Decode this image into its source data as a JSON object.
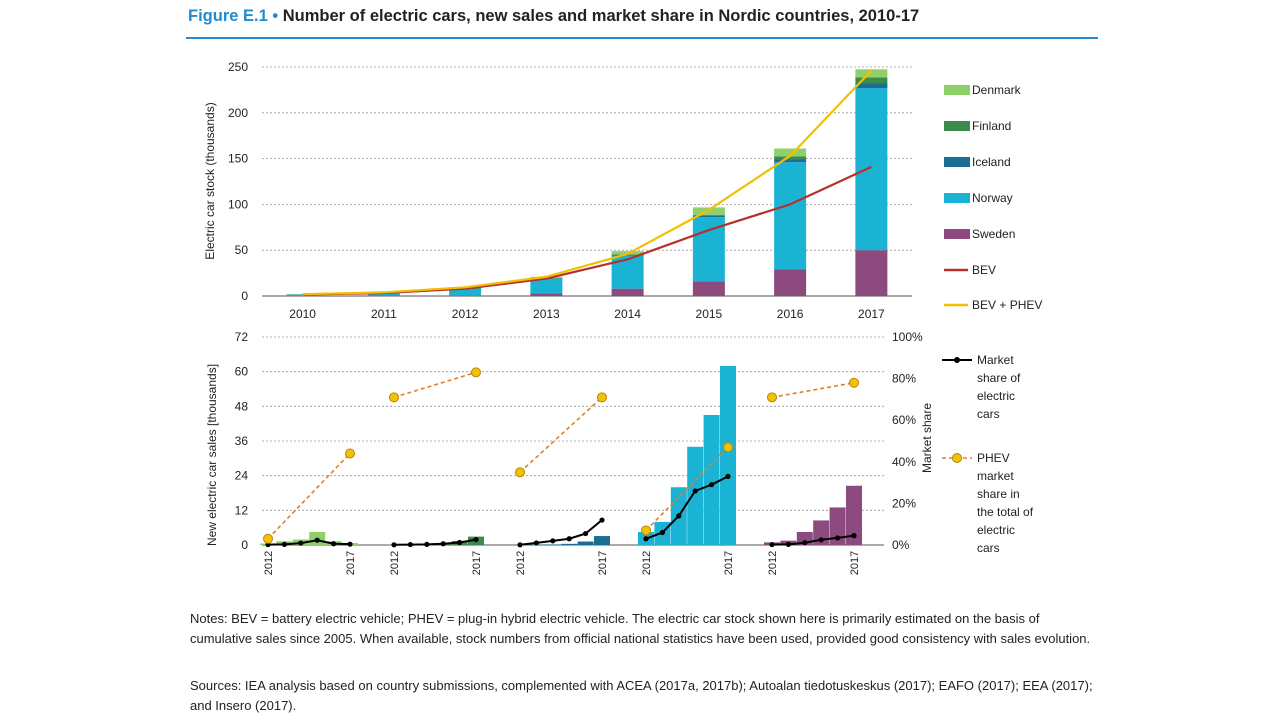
{
  "title": {
    "label": "Figure E.1",
    "bullet": "•",
    "text": "Number of electric cars, new sales and market share in Nordic countries, 2010-17"
  },
  "colors": {
    "title_accent": "#1f8bd0",
    "Denmark": "#8fd06b",
    "Finland": "#3c8a4c",
    "Iceland": "#1a6e94",
    "Norway": "#1bb3d4",
    "Sweden": "#8c4a7e",
    "BEV": "#b5302c",
    "BEV + PHEV": "#f2c000",
    "market_share": "#000000",
    "phev_share": "#d9822b",
    "phev_marker": "#f2c200"
  },
  "chart_data": [
    {
      "type": "stacked-bar + line",
      "ylabel": "Electric car stock (thousands)",
      "ylim": [
        0,
        250
      ],
      "yticks": [
        "0",
        "50",
        "100",
        "150",
        "200",
        "250"
      ],
      "categories": [
        "2010",
        "2011",
        "2012",
        "2013",
        "2014",
        "2015",
        "2016",
        "2017"
      ],
      "series": [
        {
          "name": "Sweden",
          "values": [
            0.1,
            0.2,
            0.8,
            3,
            8,
            16,
            29,
            50
          ]
        },
        {
          "name": "Norway",
          "values": [
            1.5,
            3,
            7.5,
            16,
            36,
            70,
            117,
            177
          ]
        },
        {
          "name": "Iceland",
          "values": [
            0,
            0,
            0.1,
            0.2,
            0.8,
            1.5,
            3,
            5
          ]
        },
        {
          "name": "Finland",
          "values": [
            0,
            0,
            0.1,
            0.2,
            0.7,
            1.2,
            3.5,
            6.5
          ]
        },
        {
          "name": "Denmark",
          "values": [
            0.5,
            0.8,
            1,
            1.5,
            3.5,
            8,
            8.5,
            9
          ]
        }
      ],
      "lines": [
        {
          "name": "BEV",
          "values": [
            1.8,
            3.2,
            8,
            19,
            40,
            72,
            100,
            141
          ]
        },
        {
          "name": "BEV + PHEV",
          "values": [
            2,
            4,
            9.5,
            21,
            46,
            94,
            153,
            246
          ]
        }
      ],
      "legend": [
        "Denmark",
        "Finland",
        "Iceland",
        "Norway",
        "Sweden",
        "BEV",
        "BEV + PHEV"
      ]
    },
    {
      "type": "small-multiples bar + line",
      "ylabel": "New electric car sales [thousands]",
      "y2label": "Market share",
      "ylim": [
        0,
        72
      ],
      "y2lim": [
        0,
        100
      ],
      "yticks": [
        "0",
        "12",
        "24",
        "36",
        "48",
        "60",
        "72"
      ],
      "y2ticks": [
        "0%",
        "20%",
        "40%",
        "60%",
        "80%",
        "100%"
      ],
      "groups": [
        {
          "country": "Denmark",
          "x_first": "2012",
          "x_last": "2017",
          "sales": [
            0.5,
            1.3,
            1.9,
            4.5,
            1.3,
            0.7
          ],
          "market_share": [
            0.2,
            0.3,
            0.9,
            2.3,
            0.6,
            0.4
          ],
          "phev_share": [
            {
              "x": "2012",
              "v": 3
            },
            {
              "x": "2017",
              "v": 44
            }
          ]
        },
        {
          "country": "Finland",
          "x_first": "2012",
          "x_last": "2017",
          "sales": [
            0.1,
            0.2,
            0.3,
            0.6,
            1.4,
            2.9
          ],
          "market_share": [
            0.1,
            0.2,
            0.3,
            0.6,
            1.2,
            2.6
          ],
          "phev_share": [
            {
              "x": "2012",
              "v": 71
            },
            {
              "x": "2017",
              "v": 83
            }
          ]
        },
        {
          "country": "Iceland",
          "x_first": "2012",
          "x_last": "2017",
          "sales": [
            0.02,
            0.1,
            0.2,
            0.4,
            1.2,
            3.1
          ],
          "market_share": [
            0.1,
            1,
            2,
            3,
            5.5,
            12
          ],
          "phev_share": [
            {
              "x": "2012",
              "v": 35
            },
            {
              "x": "2017",
              "v": 71
            }
          ]
        },
        {
          "country": "Norway",
          "x_first": "2012",
          "x_last": "2017",
          "sales": [
            4.5,
            8,
            20,
            34,
            45,
            62
          ],
          "market_share": [
            3,
            6,
            14,
            26,
            29,
            33
          ],
          "phev_share": [
            {
              "x": "2012",
              "v": 7
            },
            {
              "x": "2017",
              "v": 47
            }
          ]
        },
        {
          "country": "Sweden",
          "x_first": "2012",
          "x_last": "2017",
          "sales": [
            0.9,
            1.5,
            4.5,
            8.5,
            13,
            20.5
          ],
          "market_share": [
            0.2,
            0.3,
            1.1,
            2.5,
            3.4,
            4.5
          ],
          "phev_share": [
            {
              "x": "2012",
              "v": 71
            },
            {
              "x": "2017",
              "v": 78
            }
          ]
        }
      ],
      "legend": [
        {
          "name": "Market share of electric cars",
          "lines": [
            "Market",
            "share of",
            "electric",
            "cars"
          ]
        },
        {
          "name": "PHEV market share in the total of electric cars",
          "lines": [
            "PHEV",
            "market",
            "share in",
            "the total of",
            "electric",
            "cars"
          ]
        }
      ]
    }
  ],
  "notes": "Notes: BEV = battery electric vehicle; PHEV = plug-in hybrid electric vehicle. The electric car stock shown here is primarily estimated on the basis of cumulative sales since 2005. When available, stock numbers from official national statistics have been used, provided good consistency with sales evolution.",
  "sources": "Sources: IEA analysis based on country submissions, complemented with ACEA (2017a, 2017b); Autoalan tiedotuskeskus (2017); EAFO (2017); EEA (2017); and Insero (2017)."
}
